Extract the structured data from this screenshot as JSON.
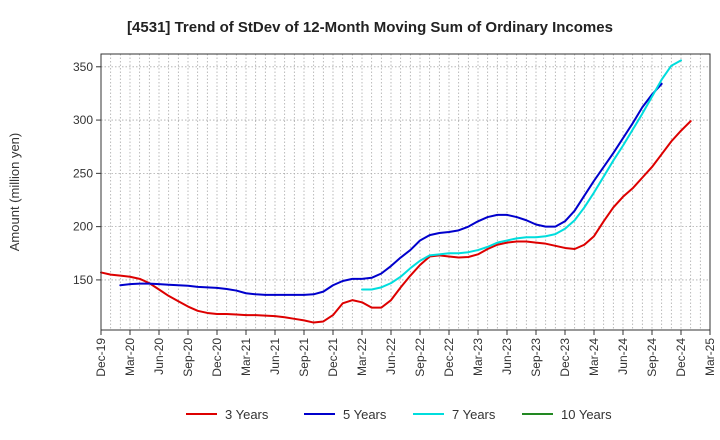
{
  "chart_data": {
    "type": "line",
    "title": "[4531]  Trend of StDev of 12-Month Moving Sum of Ordinary Incomes",
    "xlabel": "",
    "ylabel": "Amount (million yen)",
    "ylim": [
      103,
      362
    ],
    "yticks": [
      150,
      200,
      250,
      300,
      350
    ],
    "x_start": "Dec-19",
    "x_tick_labels": [
      "Dec-19",
      "Mar-20",
      "Jun-20",
      "Sep-20",
      "Dec-20",
      "Mar-21",
      "Jun-21",
      "Sep-21",
      "Dec-21",
      "Mar-22",
      "Jun-22",
      "Sep-22",
      "Dec-22",
      "Mar-23",
      "Jun-23",
      "Sep-23",
      "Dec-23",
      "Mar-24",
      "Jun-24",
      "Sep-24",
      "Dec-24",
      "Mar-25"
    ],
    "grid": true,
    "legend_position": "bottom",
    "series": [
      {
        "name": "3 Years",
        "color": "#dd0000",
        "values": [
          157,
          155,
          154,
          153,
          151,
          147,
          141,
          135,
          130,
          125,
          121,
          119,
          118,
          118,
          117.5,
          117,
          117,
          116.5,
          116,
          115,
          113.5,
          112,
          110,
          111,
          117,
          128,
          131,
          129,
          124,
          124,
          131,
          143,
          154,
          164,
          172,
          173,
          172,
          171,
          171.5,
          174,
          179,
          183,
          185,
          186,
          186,
          185,
          184,
          182,
          180,
          179,
          183,
          191,
          205,
          218,
          228,
          236,
          246,
          256,
          268,
          280,
          290,
          299
        ]
      },
      {
        "name": "5 Years",
        "color": "#0000cc",
        "values": [
          null,
          null,
          145,
          146,
          146.5,
          146.5,
          146,
          145.5,
          145,
          144.5,
          143.5,
          143,
          142.5,
          141.5,
          140,
          137.5,
          136.5,
          136,
          136,
          136,
          136,
          136,
          136.5,
          139,
          145,
          149,
          151,
          151,
          152,
          156,
          163,
          171,
          178,
          187,
          192,
          194,
          195,
          196.5,
          200,
          205,
          209,
          211,
          211,
          209,
          206,
          202,
          200,
          200,
          205,
          215,
          229,
          243,
          256,
          269,
          283,
          297,
          312,
          324,
          334
        ]
      },
      {
        "name": "7 Years",
        "color": "#00dddd",
        "values": [
          null,
          null,
          null,
          null,
          null,
          null,
          null,
          null,
          null,
          null,
          null,
          null,
          null,
          null,
          null,
          null,
          null,
          null,
          null,
          null,
          null,
          null,
          null,
          null,
          null,
          null,
          null,
          141,
          141,
          143,
          147,
          153,
          161,
          168,
          173,
          174,
          175,
          175,
          176,
          178,
          181,
          185,
          187,
          189,
          190,
          190,
          191,
          193,
          198,
          206,
          218,
          232,
          247,
          262,
          276,
          291,
          306,
          322,
          338,
          351,
          356
        ]
      },
      {
        "name": "10 Years",
        "color": "#228822",
        "values": []
      }
    ]
  }
}
